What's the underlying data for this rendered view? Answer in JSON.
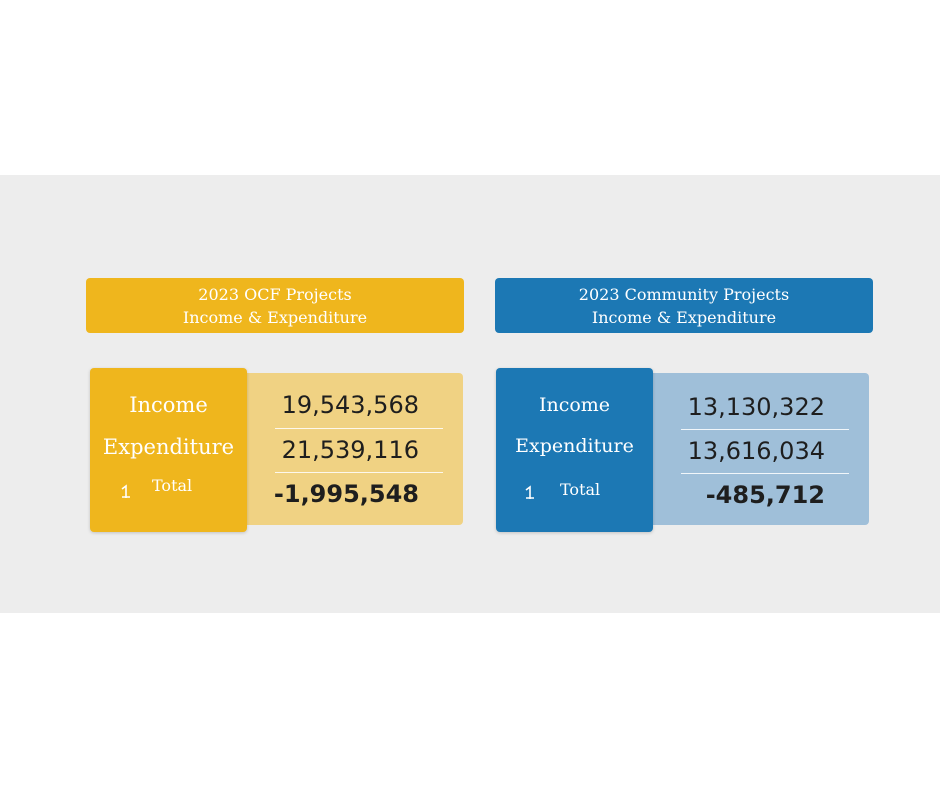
{
  "chart_data": [
    {
      "type": "table",
      "title_line1": "2023 OCF Projects",
      "title_line2": "Income & Expenditure",
      "rows": [
        {
          "label": "Income",
          "value": "19,543,568"
        },
        {
          "label": "Expenditure",
          "value": "21,539,116"
        },
        {
          "label": "Total",
          "value": "-1,995,548"
        }
      ],
      "colors": {
        "accent": "#efb61d",
        "panel": "#f0d283"
      }
    },
    {
      "type": "table",
      "title_line1": "2023 Community Projects",
      "title_line2": "Income & Expenditure",
      "rows": [
        {
          "label": "Income",
          "value": "13,130,322"
        },
        {
          "label": "Expenditure",
          "value": "13,616,034"
        },
        {
          "label": "Total",
          "value": "-485,712"
        }
      ],
      "colors": {
        "accent": "#1c78b4",
        "panel": "#9fbfd9"
      }
    }
  ]
}
